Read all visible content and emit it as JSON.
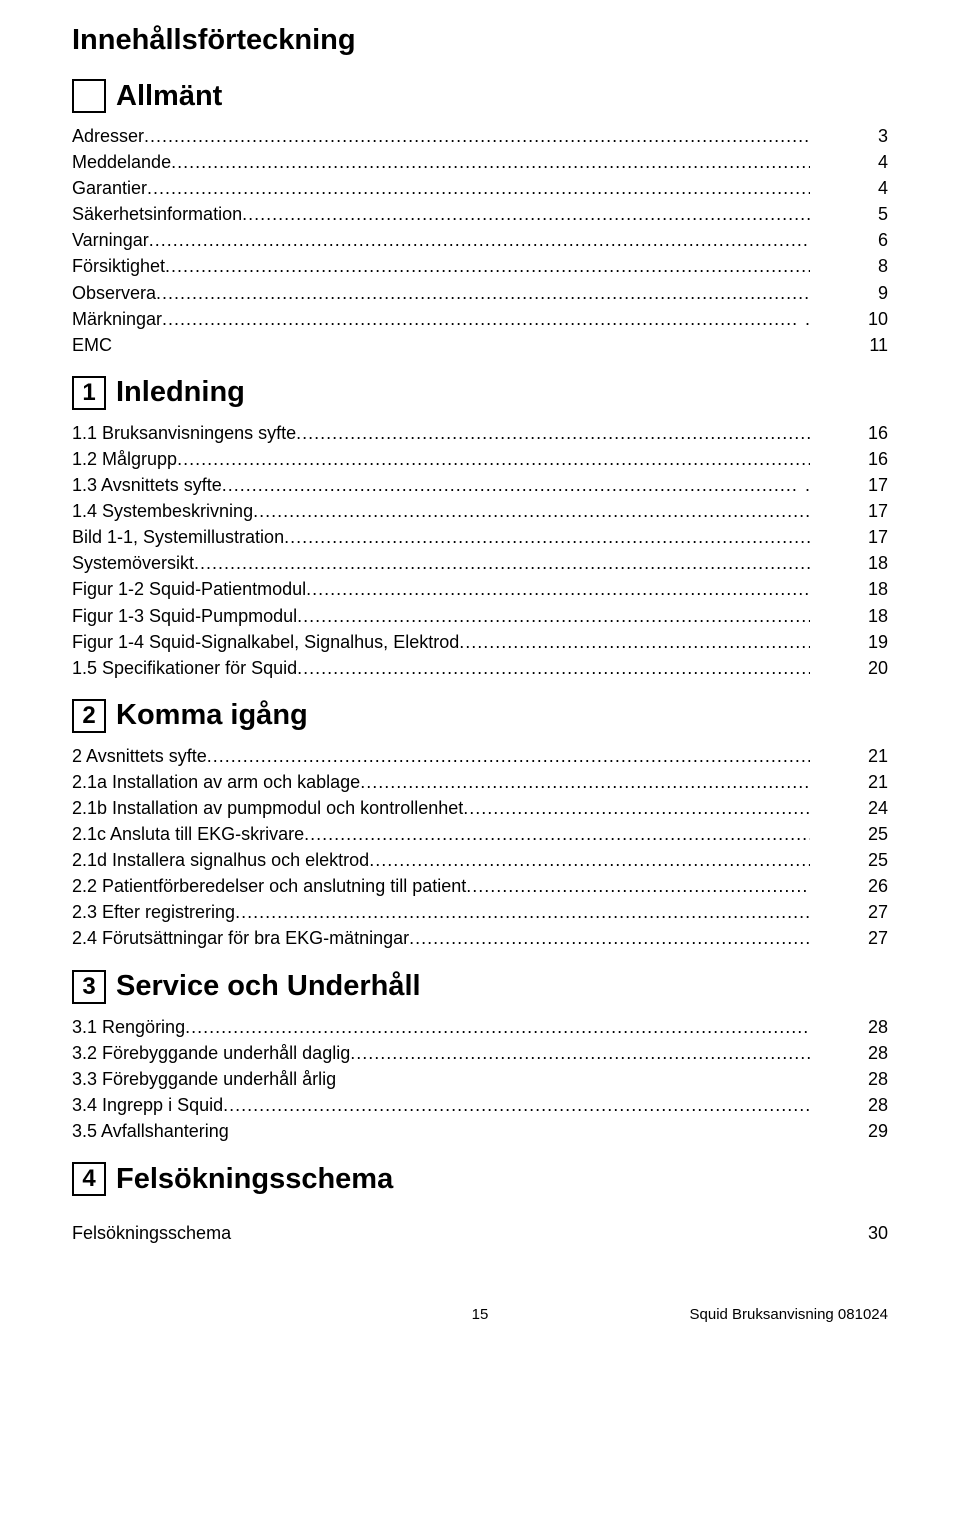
{
  "page_title": "Innehållsförteckning",
  "sections": [
    {
      "num": "",
      "title": "Allmänt",
      "items": [
        {
          "label": "Adresser",
          "page": "3",
          "dots": true
        },
        {
          "label": "Meddelande",
          "page": "4",
          "dots": true
        },
        {
          "label": "Garantier",
          "page": "4",
          "dots": true
        },
        {
          "label": "Säkerhetsinformation",
          "page": "5",
          "dots": true
        },
        {
          "label": "Varningar",
          "page": "6",
          "dots": true
        },
        {
          "label": "Försiktighet",
          "page": "8",
          "dots": true
        },
        {
          "label": "Observera",
          "page": "9",
          "dots": true
        },
        {
          "label": "Märkningar",
          "page": "10",
          "dots": true,
          "trailing_dot": "."
        },
        {
          "label": "EMC",
          "page": "11",
          "dots": false
        }
      ]
    },
    {
      "num": "1",
      "title": "Inledning",
      "items": [
        {
          "label": "1.1 Bruksanvisningens syfte",
          "page": "16",
          "dots": true
        },
        {
          "label": "1.2 Målgrupp",
          "page": "16",
          "dots": true
        },
        {
          "label": "1.3 Avsnittets syfte",
          "page": "17",
          "dots": true,
          "trailing_dot": "."
        },
        {
          "label": "1.4 Systembeskrivning",
          "page": "17",
          "dots": true
        },
        {
          "label": "Bild 1-1, Systemillustration",
          "page": "17",
          "dots": true
        },
        {
          "label": "Systemöversikt",
          "page": "18",
          "dots": true
        },
        {
          "label": "Figur 1-2 Squid-Patientmodul",
          "page": "18",
          "dots": true
        },
        {
          "label": "Figur 1-3 Squid-Pumpmodul",
          "page": "18",
          "dots": true
        },
        {
          "label": "Figur 1-4 Squid-Signalkabel, Signalhus, Elektrod",
          "page": "19",
          "dots": true
        },
        {
          "label": "1.5 Specifikationer för Squid",
          "page": "20",
          "dots": true
        }
      ]
    },
    {
      "num": "2",
      "title": "Komma igång",
      "items": [
        {
          "label": "2 Avsnittets syfte",
          "page": "21",
          "dots": true
        },
        {
          "label": "2.1a Installation av arm och kablage",
          "page": "21",
          "dots": true
        },
        {
          "label": "2.1b Installation av pumpmodul och kontrollenhet",
          "page": "24",
          "dots": true
        },
        {
          "label": "2.1c Ansluta till EKG-skrivare",
          "page": "25",
          "dots": true
        },
        {
          "label": "2.1d Installera signalhus och elektrod",
          "page": "25",
          "dots": true
        },
        {
          "label": "2.2 Patientförberedelser och anslutning till patient",
          "page": "26",
          "dots": true
        },
        {
          "label": "2.3 Efter registrering",
          "page": "27",
          "dots": true
        },
        {
          "label": "2.4 Förutsättningar för bra EKG-mätningar",
          "page": "27",
          "dots": true
        }
      ]
    },
    {
      "num": "3",
      "title": "Service och Underhåll",
      "items": [
        {
          "label": "3.1 Rengöring",
          "page": "28",
          "dots": true
        },
        {
          "label": "3.2 Förebyggande underhåll daglig",
          "page": "28",
          "dots": true
        },
        {
          "label": "3.3 Förebyggande underhåll årlig",
          "page": "28",
          "dots": false
        },
        {
          "label": "3.4 Ingrepp i Squid",
          "page": "28",
          "dots": true
        },
        {
          "label": "3.5 Avfallshantering",
          "page": "29",
          "dots": false
        }
      ]
    },
    {
      "num": "4",
      "title": "Felsökningsschema",
      "items": [
        {
          "label": "Felsökningsschema",
          "page": "30",
          "dots": false
        }
      ]
    }
  ],
  "footer": {
    "pagenum": "15",
    "docref": "Squid Bruksanvisning 081024"
  }
}
